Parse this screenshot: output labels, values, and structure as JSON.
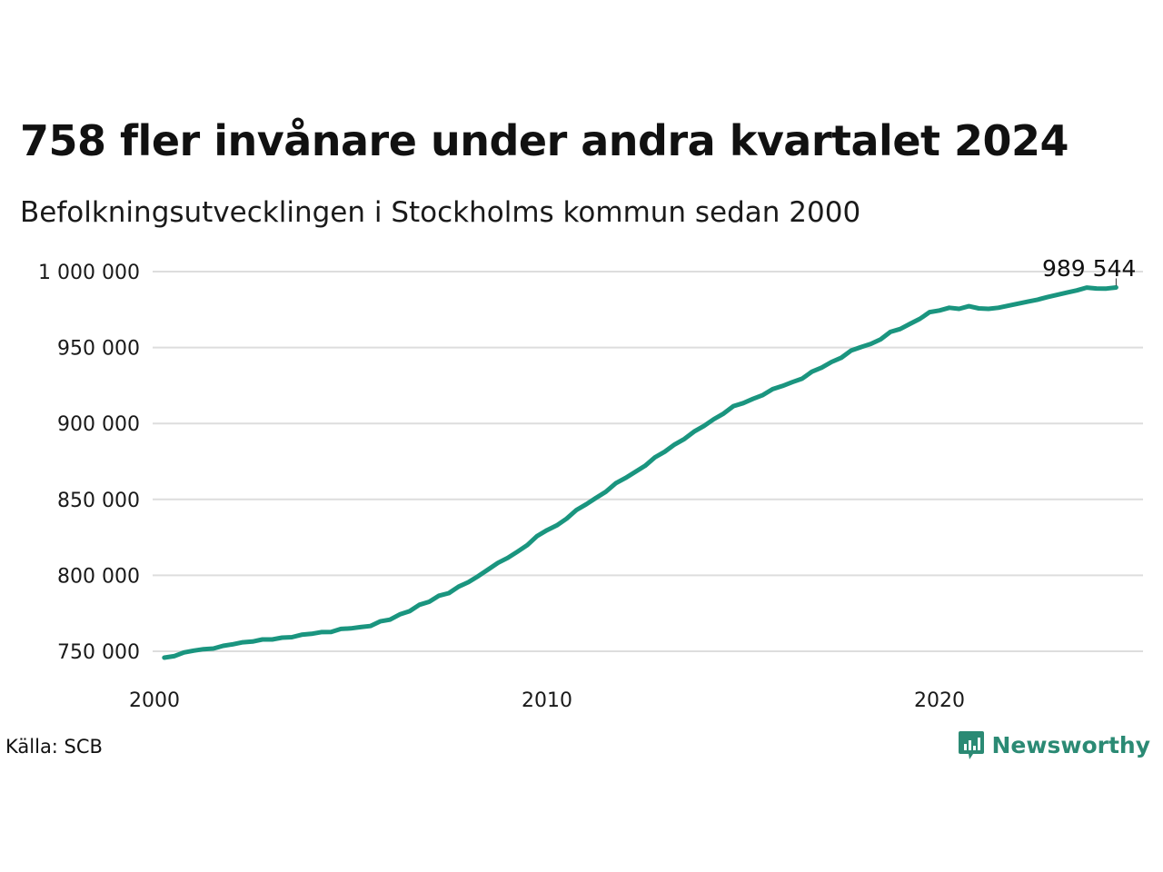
{
  "title": "758 fler invånare under andra kvartalet 2024",
  "subtitle": "Befolkningsutvecklingen i Stockholms kommun sedan 2000",
  "source": "Källa: SCB",
  "brand": "Newsworthy",
  "colors": {
    "line": "#1a957f",
    "grid": "#dddddd",
    "brand": "#2b8a74"
  },
  "chart_data": {
    "type": "line",
    "title": "758 fler invånare under andra kvartalet 2024",
    "subtitle": "Befolkningsutvecklingen i Stockholms kommun sedan 2000",
    "xlabel": "",
    "ylabel": "",
    "xlim": [
      2000,
      2025.2
    ],
    "ylim": [
      740000,
      1005000
    ],
    "x_ticks": [
      2000,
      2010,
      2020
    ],
    "x_tick_labels": [
      "2000",
      "2010",
      "2020"
    ],
    "y_ticks": [
      750000,
      800000,
      850000,
      900000,
      950000,
      1000000
    ],
    "y_tick_labels": [
      "750 000",
      "800 000",
      "850 000",
      "900 000",
      "950 000",
      "1 000 000"
    ],
    "grid": true,
    "end_label": "989 544",
    "series": [
      {
        "x": [
          2000.25,
          2000.5,
          2000.75,
          2001.0,
          2001.25,
          2001.5,
          2001.75,
          2002.0,
          2002.25,
          2002.5,
          2002.75,
          2003.0,
          2003.25,
          2003.5,
          2003.75,
          2004.0,
          2004.25,
          2004.5,
          2004.75,
          2005.0,
          2005.25,
          2005.5,
          2005.75,
          2006.0,
          2006.25,
          2006.5,
          2006.75,
          2007.0,
          2007.25,
          2007.5,
          2007.75,
          2008.0,
          2008.25,
          2008.5,
          2008.75,
          2009.0,
          2009.25,
          2009.5,
          2009.75,
          2010.0,
          2010.25,
          2010.5,
          2010.75,
          2011.0,
          2011.25,
          2011.5,
          2011.75,
          2012.0,
          2012.25,
          2012.5,
          2012.75,
          2013.0,
          2013.25,
          2013.5,
          2013.75,
          2014.0,
          2014.25,
          2014.5,
          2014.75,
          2015.0,
          2015.25,
          2015.5,
          2015.75,
          2016.0,
          2016.25,
          2016.5,
          2016.75,
          2017.0,
          2017.25,
          2017.5,
          2017.75,
          2018.0,
          2018.25,
          2018.5,
          2018.75,
          2019.0,
          2019.25,
          2019.5,
          2019.75,
          2020.0,
          2020.25,
          2020.5,
          2020.75,
          2021.0,
          2021.25,
          2021.5,
          2021.75,
          2022.0,
          2022.25,
          2022.5,
          2022.75,
          2023.0,
          2023.25,
          2023.5,
          2023.75,
          2024.0,
          2024.25,
          2024.5
        ],
        "values": [
          745800,
          746800,
          749200,
          750400,
          751400,
          751800,
          753600,
          754600,
          755900,
          756400,
          757800,
          757800,
          759000,
          759300,
          760900,
          761500,
          762600,
          762700,
          764700,
          765100,
          765900,
          766600,
          769700,
          770800,
          774300,
          776400,
          780600,
          782600,
          786600,
          788300,
          792600,
          795500,
          799500,
          803800,
          808200,
          811500,
          815600,
          819900,
          825900,
          829700,
          832900,
          837300,
          843000,
          846800,
          851000,
          855000,
          860600,
          864100,
          868100,
          872100,
          877700,
          881400,
          886100,
          889800,
          894700,
          898400,
          902800,
          906500,
          911400,
          913400,
          916200,
          918700,
          922600,
          924700,
          927200,
          929500,
          934100,
          936800,
          940500,
          943300,
          948000,
          950300,
          952400,
          955400,
          960300,
          962200,
          965600,
          968900,
          973300,
          974400,
          976200,
          975500,
          977200,
          975800,
          975500,
          976200,
          977500,
          978900,
          980200,
          981500,
          983200,
          984700,
          986200,
          987600,
          989500,
          988900,
          988800,
          989544
        ]
      }
    ]
  }
}
